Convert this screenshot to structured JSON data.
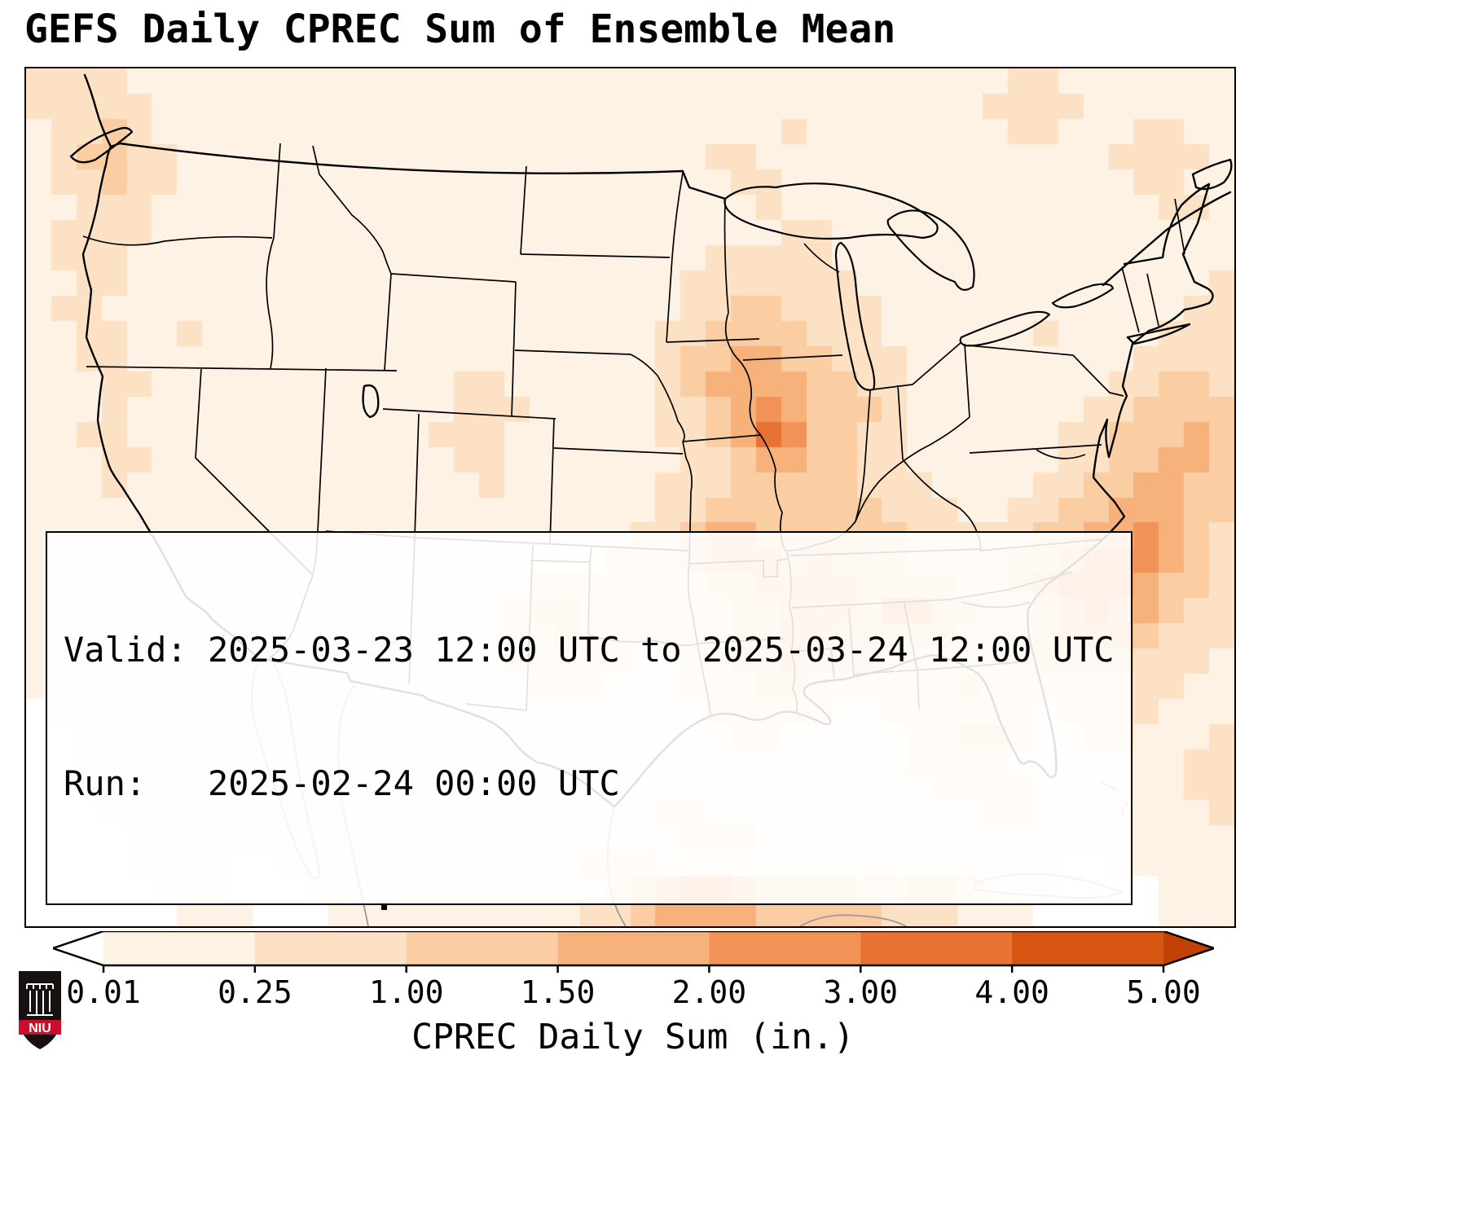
{
  "title": "GEFS Daily CPREC Sum of Ensemble Mean",
  "info_box": {
    "line1": "Valid: 2025-03-23 12:00 UTC to 2025-03-24 12:00 UTC",
    "line2": "Run:   2025-02-24 00:00 UTC"
  },
  "colorbar": {
    "label": "CPREC Daily Sum (in.)",
    "ticks": [
      "0.01",
      "0.25",
      "1.00",
      "1.50",
      "2.00",
      "3.00",
      "4.00",
      "5.00"
    ],
    "segment_colors": [
      "#fdf2e4",
      "#fce1c4",
      "#facda3",
      "#f7b27c",
      "#f19257",
      "#e77233",
      "#d75513"
    ],
    "under_color": "#ffffff",
    "over_color": "#c04103"
  },
  "logo": {
    "text": "NIU",
    "red": "#c8102e"
  },
  "chart_data": {
    "type": "heatmap",
    "title": "GEFS Daily CPREC Sum of Ensemble Mean",
    "region_shown": "Contiguous United States and surrounding waters",
    "units": "in.",
    "valid": "2025-03-23 12:00 UTC to 2025-03-24 12:00 UTC",
    "run": "2025-02-24 00:00 UTC",
    "xlabel": "CPREC Daily Sum (in.)",
    "colorbar_ticks": [
      0.01,
      0.25,
      1.0,
      1.5,
      2.0,
      3.0,
      4.0,
      5.0
    ],
    "colorbar_extend": "both",
    "levels": [
      {
        "code": 0,
        "range_in": "< 0.01",
        "color": "#ffffff"
      },
      {
        "code": 1,
        "range_in": "0.01-0.25",
        "color": "#fdf2e4"
      },
      {
        "code": 2,
        "range_in": "0.25-1.00",
        "color": "#fce1c4"
      },
      {
        "code": 3,
        "range_in": "1.00-1.50",
        "color": "#facda3"
      },
      {
        "code": 4,
        "range_in": "1.50-2.00",
        "color": "#f7b27c"
      },
      {
        "code": 5,
        "range_in": "2.00-3.00",
        "color": "#f19257"
      },
      {
        "code": 6,
        "range_in": "3.00-4.00",
        "color": "#e77233"
      },
      {
        "code": 7,
        "range_in": "4.00-5.00",
        "color": "#d75513"
      }
    ],
    "notable_maxima": [
      {
        "area": "central Illinois",
        "approx_value_in": 3.5
      },
      {
        "area": "Arkansas / Mississippi / Alabama",
        "approx_value_in": 2.5
      },
      {
        "area": "western Atlantic off the Carolinas",
        "approx_value_in": 2.5
      },
      {
        "area": "southern Gulf of Mexico (bottom edge)",
        "approx_value_in": 2.5
      }
    ],
    "grid": {
      "cols": 48,
      "rows": 34,
      "encoding": "each digit is a level code from 'levels'",
      "rows_data": [
        "222211111111111111111111111111111111111221111111",
        "222221111111111111111111111111111111112222111111",
        "122321111111111111111111111111211111111221112211",
        "123322111111111111111111111221111111111111122221",
        "122322111111111111111111111122111111111111112211",
        "112221111111111111111111111112111111111111111221",
        "122221111111111111111111111111221111111111111111",
        "122211111111111111111111111222221111111111111111",
        "112211111111111111111111112222222111111111111112",
        "122111111111111111111111112233222211111111111122",
        "112211211111111111111111122333322211111121111222",
        "112211111111111111111111123344332221111111112222",
        "111221111111111112211111123444433221111111122332",
        "111211111111111112221111122345433321111111223333",
        "112211111111111122211111122346533221111112233343",
        "111221111111111112211111112234433221111112233443",
        "111211111111111111211111122233333222111122334433",
        "111111111111111111111111122333333322211223344433",
        "111111111111111111111111223443333332222233445432",
        "111111111111111111111112223444343332222334555432",
        "111111111111111111112222222334444333322345554332",
        "111111111111111111123322222233444355332234544322",
        "111111111111111111122322222233443333322234443222",
        "111111111111111111122222112233433322222233332221",
        "111111111111111111112221112223322222232222222211",
        "011111111111111111111111111222221122222212222111",
        "001111111111111111111111111122111112233211221112",
        "001111111111111111111111111111111112222111111122",
        "000111111111111111111111111111111111222211111122",
        "000111111111111111111111122111111111112211111112",
        "000011111111111111111111112221111111111111111111",
        "000011110011111111111122211111111111111110011111",
        "000001110001111111111112345543333223321110000111",
        "000000111000111111111122344443333322211100000111"
      ]
    }
  }
}
